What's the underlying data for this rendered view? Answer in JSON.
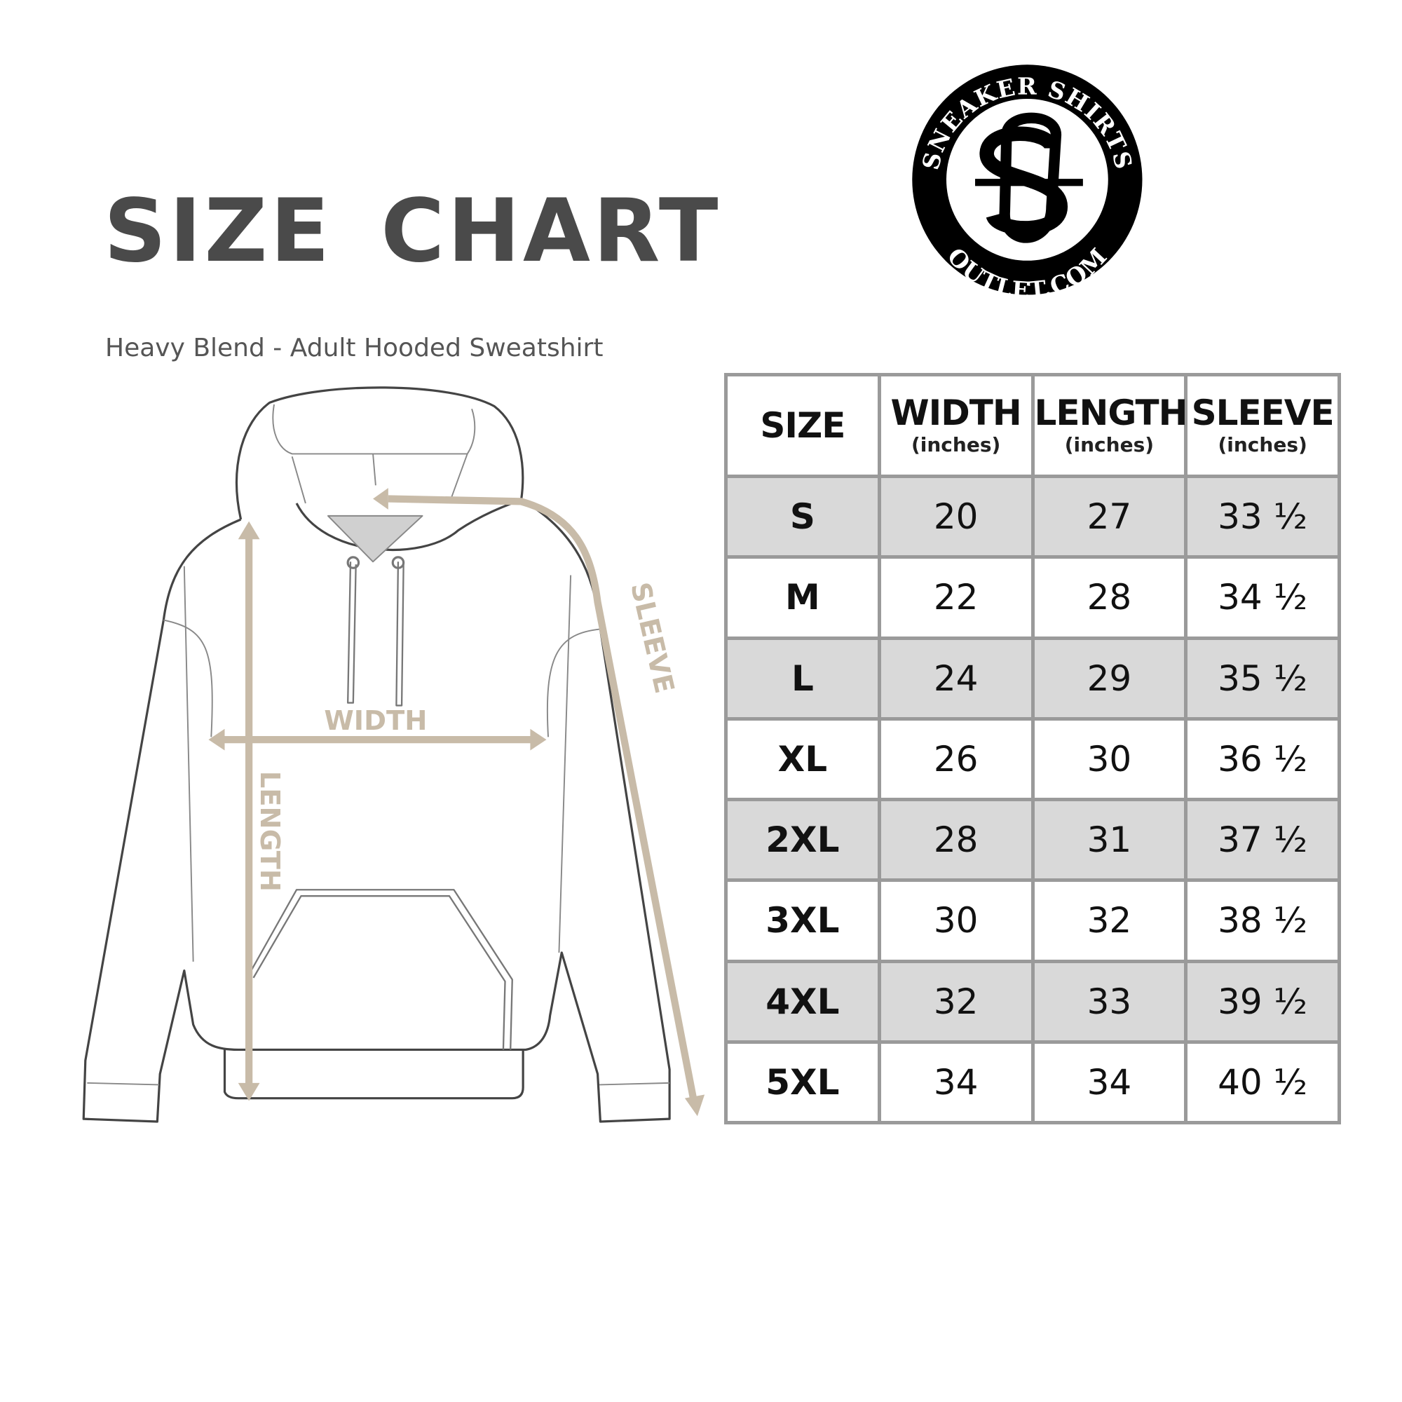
{
  "title": "SIZE CHART",
  "subtitle": "Heavy Blend - Adult Hooded Sweatshirt",
  "logo": {
    "top_text": "SNEAKER SHIRTS",
    "bottom_text": "OUTLET.COM",
    "monogram": "SS"
  },
  "diagram": {
    "labels": {
      "width": "WIDTH",
      "length": "LENGTH",
      "sleeve": "SLEEVE"
    },
    "arrow_color": "#c8bba8"
  },
  "table": {
    "headers": [
      {
        "label": "SIZE",
        "unit": ""
      },
      {
        "label": "WIDTH",
        "unit": "(inches)"
      },
      {
        "label": "LENGTH",
        "unit": "(inches)"
      },
      {
        "label": "SLEEVE",
        "unit": "(inches)"
      }
    ],
    "rows": [
      {
        "size": "S",
        "width": "20",
        "length": "27",
        "sleeve": "33 ½"
      },
      {
        "size": "M",
        "width": "22",
        "length": "28",
        "sleeve": "34 ½"
      },
      {
        "size": "L",
        "width": "24",
        "length": "29",
        "sleeve": "35 ½"
      },
      {
        "size": "XL",
        "width": "26",
        "length": "30",
        "sleeve": "36 ½"
      },
      {
        "size": "2XL",
        "width": "28",
        "length": "31",
        "sleeve": "37 ½"
      },
      {
        "size": "3XL",
        "width": "30",
        "length": "32",
        "sleeve": "38 ½"
      },
      {
        "size": "4XL",
        "width": "32",
        "length": "33",
        "sleeve": "39 ½"
      },
      {
        "size": "5XL",
        "width": "34",
        "length": "34",
        "sleeve": "40 ½"
      }
    ],
    "stripe_color": "#d9d9d9",
    "border_color": "#9a9a9a"
  }
}
